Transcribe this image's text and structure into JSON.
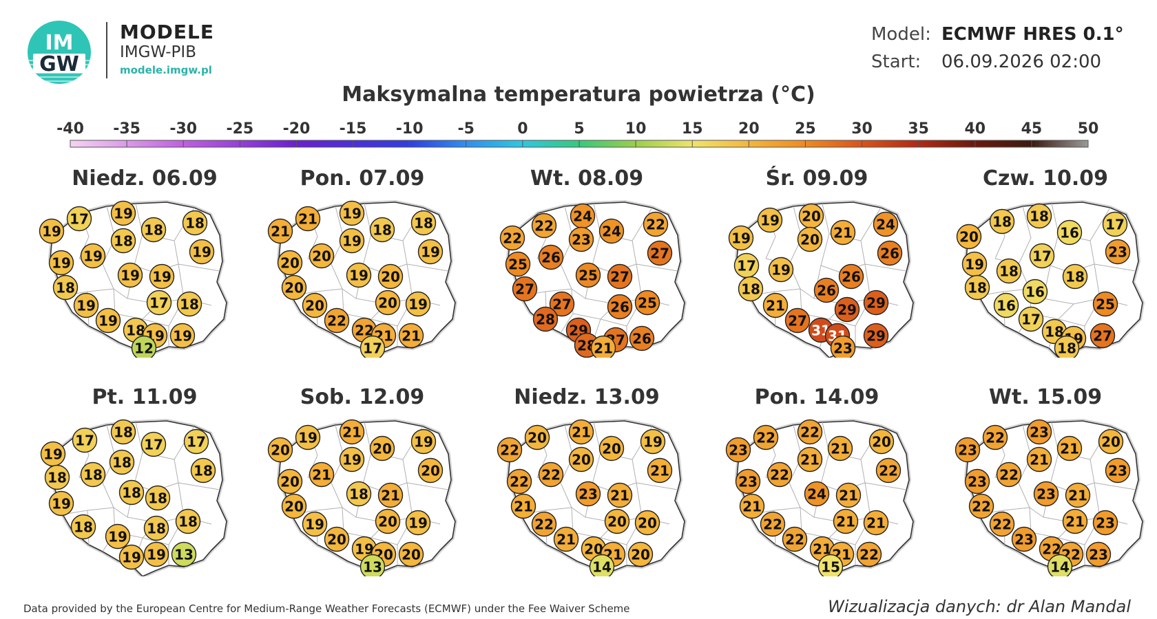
{
  "header": {
    "logo_text_top": "IM",
    "logo_text_bottom": "GW",
    "brand_title": "MODELE",
    "brand_sub": "IMGW-PIB",
    "brand_url": "modele.imgw.pl",
    "model_label": "Model:",
    "model_value": "ECMWF HRES 0.1°",
    "start_label": "Start:",
    "start_value": "06.09.2026 02:00"
  },
  "title": "Maksymalna temperatura powietrza (°C)",
  "scale": {
    "ticks": [
      "-40",
      "-35",
      "-30",
      "-25",
      "-20",
      "-15",
      "-10",
      "-5",
      "0",
      "5",
      "10",
      "15",
      "20",
      "25",
      "30",
      "35",
      "40",
      "45",
      "50"
    ],
    "min": -40,
    "max": 50,
    "stops": [
      {
        "t": -40,
        "color": "#f6d3f3"
      },
      {
        "t": -30,
        "color": "#c05fe0"
      },
      {
        "t": -20,
        "color": "#6a1fd0"
      },
      {
        "t": -10,
        "color": "#2f3fe0"
      },
      {
        "t": -5,
        "color": "#2f8ff0"
      },
      {
        "t": 0,
        "color": "#2ec8e0"
      },
      {
        "t": 5,
        "color": "#36c97b"
      },
      {
        "t": 10,
        "color": "#9ccf4a"
      },
      {
        "t": 15,
        "color": "#f0e36a"
      },
      {
        "t": 20,
        "color": "#f5b63c"
      },
      {
        "t": 25,
        "color": "#ee8a22"
      },
      {
        "t": 30,
        "color": "#d9541b"
      },
      {
        "t": 35,
        "color": "#b02a14"
      },
      {
        "t": 40,
        "color": "#6b1a0e"
      },
      {
        "t": 45,
        "color": "#3d1a10"
      },
      {
        "t": 50,
        "color": "#9a9a9a"
      }
    ]
  },
  "days": [
    {
      "label": "Niedz. 06.09",
      "values": [
        19,
        17,
        19,
        18,
        18,
        19,
        19,
        18,
        19,
        18,
        19,
        19,
        19,
        17,
        18,
        19,
        18,
        19,
        19,
        12
      ]
    },
    {
      "label": "Pon. 07.09",
      "values": [
        21,
        21,
        19,
        18,
        18,
        20,
        20,
        19,
        19,
        20,
        19,
        20,
        20,
        20,
        19,
        22,
        22,
        21,
        21,
        17
      ]
    },
    {
      "label": "Wt. 08.09",
      "values": [
        22,
        22,
        24,
        24,
        22,
        25,
        26,
        23,
        27,
        27,
        25,
        27,
        27,
        26,
        25,
        28,
        29,
        28,
        27,
        26,
        21
      ]
    },
    {
      "label": "Śr. 09.09",
      "values": [
        19,
        19,
        20,
        21,
        24,
        17,
        20,
        26,
        18,
        26,
        26,
        19,
        21,
        29,
        29,
        27,
        31,
        31,
        29,
        23
      ]
    },
    {
      "label": "Czw. 10.09",
      "values": [
        20,
        18,
        18,
        16,
        17,
        19,
        17,
        23,
        18,
        18,
        18,
        16,
        16,
        25,
        17,
        18,
        19,
        27,
        18
      ]
    },
    {
      "label": "Pt. 11.09",
      "values": [
        19,
        17,
        18,
        17,
        17,
        18,
        18,
        18,
        18,
        19,
        18,
        18,
        18,
        19,
        18,
        18,
        19,
        19,
        13
      ]
    },
    {
      "label": "Sob. 12.09",
      "values": [
        20,
        19,
        21,
        20,
        19,
        20,
        21,
        19,
        20,
        20,
        18,
        21,
        19,
        20,
        19,
        20,
        19,
        20,
        20,
        13
      ]
    },
    {
      "label": "Niedz. 13.09",
      "values": [
        22,
        20,
        21,
        20,
        19,
        22,
        22,
        20,
        21,
        21,
        23,
        21,
        22,
        20,
        20,
        21,
        20,
        21,
        20,
        14
      ]
    },
    {
      "label": "Pon. 14.09",
      "values": [
        23,
        22,
        22,
        21,
        20,
        23,
        22,
        21,
        22,
        21,
        24,
        21,
        22,
        21,
        21,
        22,
        21,
        21,
        22,
        15
      ]
    },
    {
      "label": "Wt. 15.09",
      "values": [
        23,
        22,
        23,
        21,
        20,
        23,
        22,
        21,
        23,
        22,
        23,
        21,
        22,
        21,
        23,
        23,
        22,
        22,
        23,
        14
      ]
    }
  ],
  "footer": {
    "left": "Data provided by the European Centre for Medium-Range Weather Forecasts (ECMWF) under the Fee Waiver Scheme",
    "right": "Wizualizacja danych: dr Alan Mandal"
  }
}
